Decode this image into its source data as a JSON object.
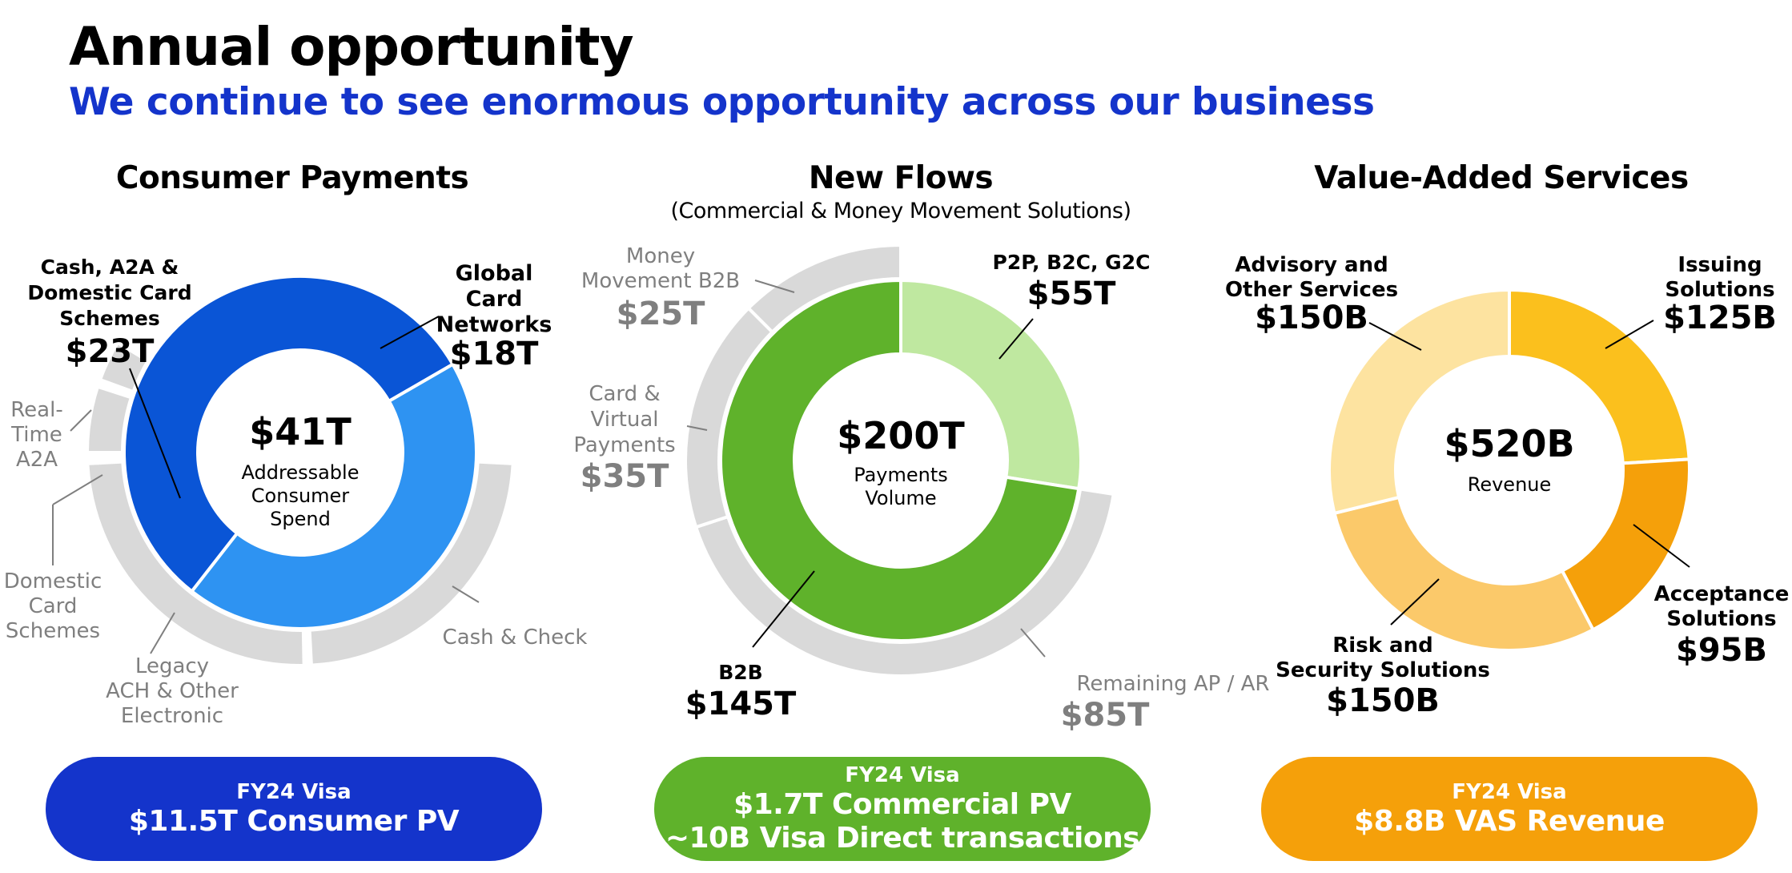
{
  "header": {
    "title": "Annual opportunity",
    "subtitle": "We continue to see enormous opportunity across our business"
  },
  "panels": [
    {
      "title": "Consumer Payments",
      "subtitle": ""
    },
    {
      "title": "New Flows",
      "subtitle": "(Commercial & Money Movement Solutions)"
    },
    {
      "title": "Value-Added Services",
      "subtitle": ""
    }
  ],
  "banners": [
    {
      "label": "FY24 Visa",
      "lines": [
        "$11.5T Consumer PV"
      ],
      "color": "#1434cb"
    },
    {
      "label": "FY24 Visa",
      "lines": [
        "$1.7T Commercial PV",
        "~10B Visa Direct transactions"
      ],
      "color": "#5fb22b"
    },
    {
      "label": "FY24 Visa",
      "lines": [
        "$8.8B VAS Revenue"
      ],
      "color": "#f5a00a"
    }
  ],
  "chart_data": [
    {
      "type": "pie",
      "title": "Consumer Payments",
      "center_value": "$41T",
      "center_label": [
        "Addressable",
        "Consumer",
        "Spend"
      ],
      "unit": "$T",
      "inner_ring": [
        {
          "label": [
            "Cash, A2A &",
            "Domestic Card",
            "Schemes"
          ],
          "display": "$23T",
          "value": 23,
          "color": "#0a55d6"
        },
        {
          "label": [
            "Global",
            "Card",
            "Networks"
          ],
          "display": "$18T",
          "value": 18,
          "color": "#2e93f2"
        }
      ],
      "outer_ring": [
        {
          "label": [
            "Cash & Check"
          ]
        },
        {
          "label": [
            "Legacy",
            "ACH & Other",
            "Electronic"
          ]
        },
        {
          "label": [
            "Domestic",
            "Card",
            "Schemes"
          ]
        },
        {
          "label": [
            "Real-",
            "Time",
            "A2A"
          ]
        }
      ],
      "colors": {
        "outer": "#d9d9d9",
        "outer_label": "#7f7f7f"
      }
    },
    {
      "type": "pie",
      "title": "New Flows",
      "center_value": "$200T",
      "center_label": [
        "Payments",
        "Volume"
      ],
      "unit": "$T",
      "inner_ring": [
        {
          "label": [
            "P2P, B2C, G2C"
          ],
          "display": "$55T",
          "value": 55,
          "color": "#bfe8a0"
        },
        {
          "label": [
            "B2B"
          ],
          "display": "$145T",
          "value": 145,
          "color": "#5fb22b"
        }
      ],
      "outer_ring": [
        {
          "label": [
            "Remaining AP / AR"
          ],
          "display": "$85T",
          "value": 85
        },
        {
          "label": [
            "Card &",
            "Virtual",
            "Payments"
          ],
          "display": "$35T",
          "value": 35
        },
        {
          "label": [
            "Money",
            "Movement B2B"
          ],
          "display": "$25T",
          "value": 25
        }
      ],
      "colors": {
        "outer": "#d9d9d9",
        "outer_label": "#7f7f7f"
      }
    },
    {
      "type": "pie",
      "title": "Value-Added Services",
      "center_value": "$520B",
      "center_label": [
        "Revenue"
      ],
      "unit": "$B",
      "inner_ring": [
        {
          "label": [
            "Issuing",
            "Solutions"
          ],
          "display": "$125B",
          "value": 125,
          "color": "#fbc01d"
        },
        {
          "label": [
            "Acceptance",
            "Solutions"
          ],
          "display": "$95B",
          "value": 95,
          "color": "#f5a00a"
        },
        {
          "label": [
            "Risk and",
            "Security Solutions"
          ],
          "display": "$150B",
          "value": 150,
          "color": "#fbc96a"
        },
        {
          "label": [
            "Advisory and",
            "Other Services"
          ],
          "display": "$150B",
          "value": 150,
          "color": "#fde3a0"
        }
      ]
    }
  ]
}
